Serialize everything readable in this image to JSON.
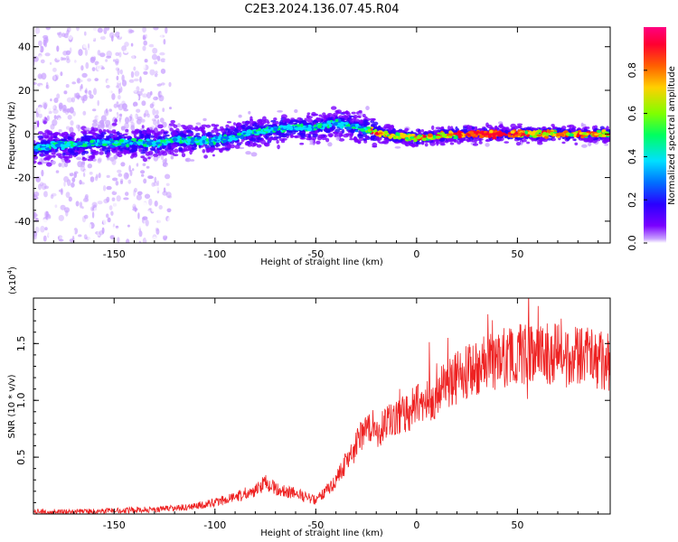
{
  "chart_data": [
    {
      "type": "heatmap",
      "title": "C2E3.2024.136.07.45.R04",
      "xlabel": "Height of straight line (km)",
      "ylabel": "Frequency (Hz)",
      "xlim": [
        -190,
        96
      ],
      "ylim": [
        -50,
        49
      ],
      "xticks": [
        -150,
        -100,
        -50,
        0,
        50
      ],
      "yticks": [
        -40,
        -20,
        0,
        20,
        40
      ],
      "colorbar": {
        "label": "Normalized spectral amplitude",
        "range": [
          0,
          1
        ],
        "ticks": [
          0.0,
          0.2,
          0.4,
          0.6,
          0.8
        ],
        "tick_labels": [
          "0.0",
          "0.2",
          "0.4",
          "0.6",
          "0.8"
        ],
        "colormap": [
          "#ffffff",
          "#c8a0ff",
          "#7a00ff",
          "#2a00ff",
          "#0070ff",
          "#00e0ff",
          "#00ff60",
          "#80ff00",
          "#ffd000",
          "#ff6000",
          "#ff0030",
          "#ff0080"
        ]
      },
      "ridge": {
        "x": [
          -190,
          -180,
          -170,
          -160,
          -150,
          -140,
          -130,
          -120,
          -110,
          -100,
          -90,
          -80,
          -70,
          -60,
          -50,
          -40,
          -30,
          -25,
          -20,
          -10,
          0,
          10,
          20,
          30,
          40,
          50,
          60,
          70,
          80,
          90,
          96
        ],
        "frequency": [
          -7,
          -5,
          -5,
          -4,
          -4,
          -4,
          -4,
          -3,
          -3,
          -3,
          -1,
          1,
          2,
          3,
          3,
          5,
          3,
          2,
          1,
          -1,
          -2,
          -1,
          0,
          0,
          0,
          0,
          0,
          0,
          0,
          0,
          0
        ]
      }
    },
    {
      "type": "line",
      "xlabel": "Height of straight line (km)",
      "ylabel": "SNR (10 * v/v)",
      "scale_label": "(x10",
      "scale_exponent": "4",
      "scale_suffix": ")",
      "xlim": [
        -190,
        96
      ],
      "ylim": [
        0,
        1.9
      ],
      "xticks": [
        -150,
        -100,
        -50,
        0,
        50
      ],
      "yticks": [
        0.5,
        1.0,
        1.5
      ],
      "ytick_labels": [
        "0.5",
        "1.0",
        "1.5"
      ],
      "color": "#ee2222",
      "series": [
        {
          "name": "SNR",
          "x": [
            -190,
            -170,
            -150,
            -130,
            -120,
            -110,
            -100,
            -90,
            -80,
            -75,
            -70,
            -60,
            -50,
            -45,
            -40,
            -35,
            -30,
            -25,
            -20,
            -15,
            -10,
            -5,
            0,
            5,
            10,
            15,
            20,
            25,
            30,
            35,
            40,
            45,
            50,
            55,
            60,
            65,
            70,
            75,
            80,
            85,
            90,
            96
          ],
          "y": [
            0.02,
            0.02,
            0.03,
            0.04,
            0.05,
            0.07,
            0.1,
            0.15,
            0.2,
            0.28,
            0.22,
            0.18,
            0.12,
            0.2,
            0.3,
            0.45,
            0.6,
            0.8,
            0.7,
            0.8,
            0.85,
            0.9,
            0.95,
            1.0,
            1.05,
            1.15,
            1.2,
            1.25,
            1.3,
            1.32,
            1.35,
            1.38,
            1.4,
            1.42,
            1.4,
            1.42,
            1.4,
            1.38,
            1.4,
            1.38,
            1.36,
            1.34
          ]
        }
      ]
    }
  ]
}
